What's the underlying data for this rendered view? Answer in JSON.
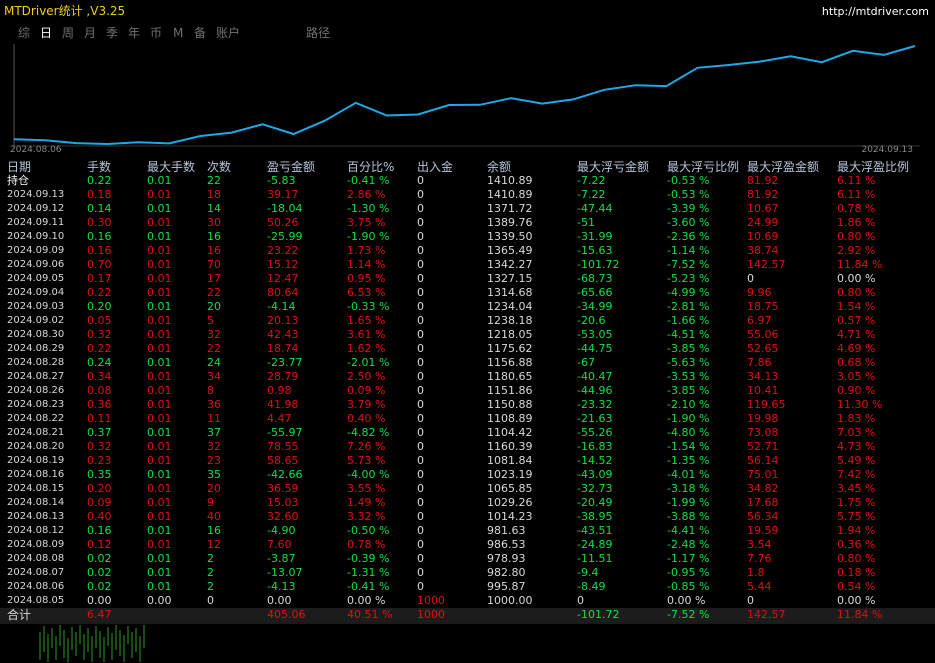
{
  "title_bar": {
    "title": "MTDriver统计 ,V3.25",
    "url": "http://mtdriver.com"
  },
  "tabs": [
    "综",
    "日",
    "周",
    "月",
    "季",
    "年",
    "币",
    "M",
    "备",
    "账户",
    "路径"
  ],
  "active_tab": 1,
  "chart": {
    "x_start": "2024.08.06",
    "x_end": "2024.09.13",
    "color": "#1ea8e8"
  },
  "table": {
    "columns": [
      "日期",
      "手数",
      "最大手数",
      "次数",
      "盈亏金额",
      "百分比%",
      "出入金",
      "余额",
      "最大浮亏金额",
      "最大浮亏比例",
      "最大浮盈金额",
      "最大浮盈比例"
    ],
    "rows": [
      [
        "持仓",
        "0.22",
        "0.01",
        "22",
        "-5.83",
        "-0.41 %",
        "0",
        "1410.89",
        "-7.22",
        "-0.53 %",
        "81.92",
        "6.11 %"
      ],
      [
        "2024.09.13",
        "0.18",
        "0.01",
        "18",
        "39.17",
        "2.86 %",
        "0",
        "1410.89",
        "-7.22",
        "-0.53 %",
        "81.92",
        "6.11 %"
      ],
      [
        "2024.09.12",
        "0.14",
        "0.01",
        "14",
        "-18.04",
        "-1.30 %",
        "0",
        "1371.72",
        "-47.44",
        "-3.39 %",
        "10.67",
        "0.78 %"
      ],
      [
        "2024.09.11",
        "0.30",
        "0.01",
        "30",
        "50.26",
        "3.75 %",
        "0",
        "1389.76",
        "-51",
        "-3.60 %",
        "24.99",
        "1.86 %"
      ],
      [
        "2024.09.10",
        "0.16",
        "0.01",
        "16",
        "-25.99",
        "-1.90 %",
        "0",
        "1339.50",
        "-31.99",
        "-2.36 %",
        "10.69",
        "0.80 %"
      ],
      [
        "2024.09.09",
        "0.16",
        "0.01",
        "16",
        "23.22",
        "1.73 %",
        "0",
        "1365.49",
        "-15.63",
        "-1.14 %",
        "38.74",
        "2.92 %"
      ],
      [
        "2024.09.06",
        "0.70",
        "0.01",
        "70",
        "15.12",
        "1.14 %",
        "0",
        "1342.27",
        "-101.72",
        "-7.52 %",
        "142.57",
        "11.84 %"
      ],
      [
        "2024.09.05",
        "0.17",
        "0.01",
        "17",
        "12.47",
        "0.95 %",
        "0",
        "1327.15",
        "-68.73",
        "-5.23 %",
        "0",
        "0.00 %"
      ],
      [
        "2024.09.04",
        "0.22",
        "0.01",
        "22",
        "80.64",
        "6.53 %",
        "0",
        "1314.68",
        "-65.66",
        "-4.99 %",
        "9.96",
        "0.80 %"
      ],
      [
        "2024.09.03",
        "0.20",
        "0.01",
        "20",
        "-4.14",
        "-0.33 %",
        "0",
        "1234.04",
        "-34.99",
        "-2.81 %",
        "18.75",
        "1.54 %"
      ],
      [
        "2024.09.02",
        "0.05",
        "0.01",
        "5",
        "20.13",
        "1.65 %",
        "0",
        "1238.18",
        "-20.6",
        "-1.66 %",
        "6.97",
        "0.57 %"
      ],
      [
        "2024.08.30",
        "0.32",
        "0.01",
        "32",
        "42.43",
        "3.61 %",
        "0",
        "1218.05",
        "-53.05",
        "-4.51 %",
        "55.06",
        "4.71 %"
      ],
      [
        "2024.08.29",
        "0.22",
        "0.01",
        "22",
        "18.74",
        "1.62 %",
        "0",
        "1175.62",
        "-44.75",
        "-3.85 %",
        "52.65",
        "4.69 %"
      ],
      [
        "2024.08.28",
        "0.24",
        "0.01",
        "24",
        "-23.77",
        "-2.01 %",
        "0",
        "1156.88",
        "-67",
        "-5.63 %",
        "7.86",
        "0.68 %"
      ],
      [
        "2024.08.27",
        "0.34",
        "0.01",
        "34",
        "28.79",
        "2.50 %",
        "0",
        "1180.65",
        "-40.47",
        "-3.53 %",
        "34.13",
        "3.05 %"
      ],
      [
        "2024.08.26",
        "0.08",
        "0.01",
        "8",
        "0.98",
        "0.09 %",
        "0",
        "1151.86",
        "-44.96",
        "-3.85 %",
        "10.41",
        "0.90 %"
      ],
      [
        "2024.08.23",
        "0.36",
        "0.01",
        "36",
        "41.98",
        "3.79 %",
        "0",
        "1150.88",
        "-23.32",
        "-2.10 %",
        "119.65",
        "11.30 %"
      ],
      [
        "2024.08.22",
        "0.11",
        "0.01",
        "11",
        "4.47",
        "0.40 %",
        "0",
        "1108.89",
        "-21.63",
        "-1.90 %",
        "19.98",
        "1.83 %"
      ],
      [
        "2024.08.21",
        "0.37",
        "0.01",
        "37",
        "-55.97",
        "-4.82 %",
        "0",
        "1104.42",
        "-55.26",
        "-4.80 %",
        "73.08",
        "7.03 %"
      ],
      [
        "2024.08.20",
        "0.32",
        "0.01",
        "32",
        "78.55",
        "7.26 %",
        "0",
        "1160.39",
        "-16.83",
        "-1.54 %",
        "52.71",
        "4.73 %"
      ],
      [
        "2024.08.19",
        "0.23",
        "0.01",
        "23",
        "58.65",
        "5.73 %",
        "0",
        "1081.84",
        "-14.52",
        "-1.35 %",
        "56.14",
        "5.49 %"
      ],
      [
        "2024.08.16",
        "0.35",
        "0.01",
        "35",
        "-42.66",
        "-4.00 %",
        "0",
        "1023.19",
        "-43.09",
        "-4.01 %",
        "75.01",
        "7.42 %"
      ],
      [
        "2024.08.15",
        "0.20",
        "0.01",
        "20",
        "36.59",
        "3.55 %",
        "0",
        "1065.85",
        "-32.73",
        "-3.18 %",
        "34.82",
        "3.45 %"
      ],
      [
        "2024.08.14",
        "0.09",
        "0.01",
        "9",
        "15.03",
        "1.49 %",
        "0",
        "1029.26",
        "-20.49",
        "-1.99 %",
        "17.68",
        "1.75 %"
      ],
      [
        "2024.08.13",
        "0.40",
        "0.01",
        "40",
        "32.60",
        "3.32 %",
        "0",
        "1014.23",
        "-38.95",
        "-3.88 %",
        "56.34",
        "5.75 %"
      ],
      [
        "2024.08.12",
        "0.16",
        "0.01",
        "16",
        "-4.90",
        "-0.50 %",
        "0",
        "981.63",
        "-43.51",
        "-4.41 %",
        "19.59",
        "1.94 %"
      ],
      [
        "2024.08.09",
        "0.12",
        "0.01",
        "12",
        "7.60",
        "0.78 %",
        "0",
        "986.53",
        "-24.89",
        "-2.48 %",
        "3.54",
        "0.36 %"
      ],
      [
        "2024.08.08",
        "0.02",
        "0.01",
        "2",
        "-3.87",
        "-0.39 %",
        "0",
        "978.93",
        "-11.51",
        "-1.17 %",
        "7.76",
        "0.80 %"
      ],
      [
        "2024.08.07",
        "0.02",
        "0.01",
        "2",
        "-13.07",
        "-1.31 %",
        "0",
        "982.80",
        "-9.4",
        "-0.95 %",
        "1.8",
        "0.18 %"
      ],
      [
        "2024.08.06",
        "0.02",
        "0.01",
        "2",
        "-4.13",
        "-0.41 %",
        "0",
        "995.87",
        "-8.49",
        "-0.85 %",
        "5.44",
        "0.54 %"
      ],
      [
        "2024.08.05",
        "0.00",
        "0.00",
        "0",
        "0.00",
        "0.00 %",
        "1000",
        "1000.00",
        "0",
        "0.00 %",
        "0",
        "0.00 %"
      ]
    ],
    "totals": [
      "合计",
      "6.47",
      null,
      null,
      "405.06",
      "40.51 %",
      "1000",
      null,
      "-101.72",
      "-7.52 %",
      "142.57",
      "11.84 %"
    ]
  }
}
